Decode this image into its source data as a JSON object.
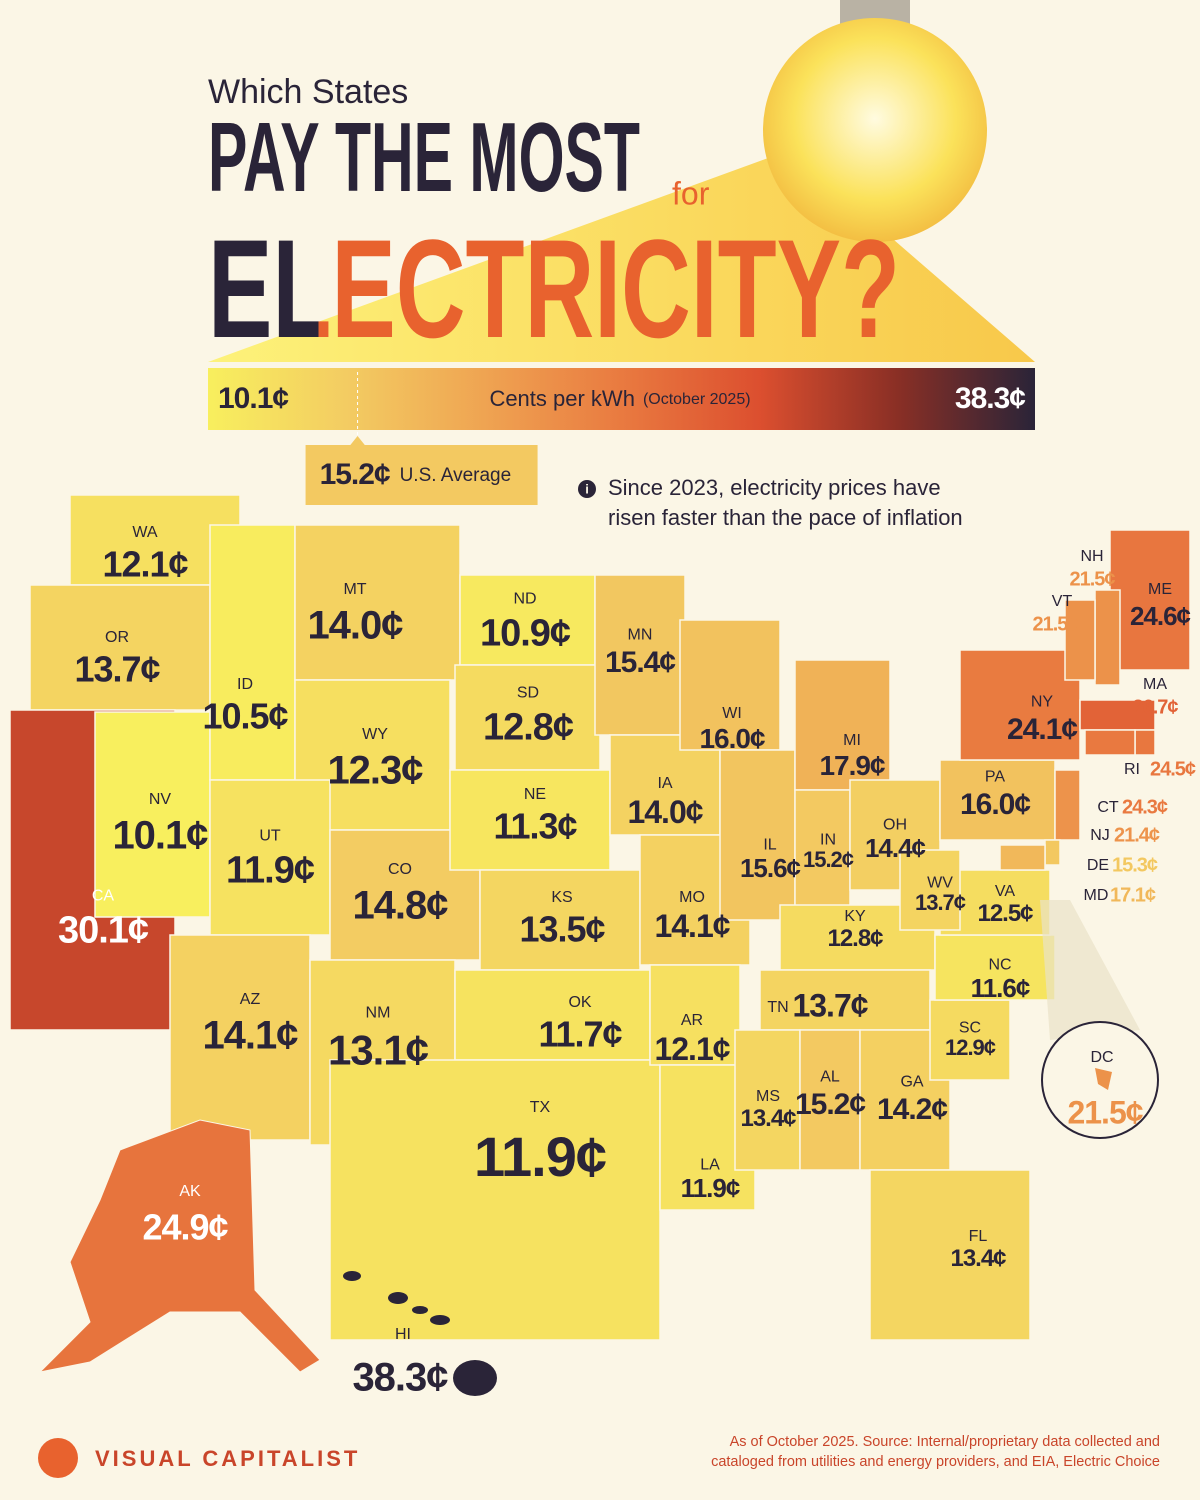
{
  "title": {
    "kicker": "Which States",
    "main": "PAY THE MOST",
    "connector": "for",
    "highlight": "ELECTRICITY?"
  },
  "legend": {
    "min": {
      "value": 10.1,
      "label": "10.1¢"
    },
    "max": {
      "value": 38.3,
      "label": "38.3¢"
    },
    "unit": "Cents per kWh",
    "period": "(October 2025)",
    "colors": [
      "#f8ef5e",
      "#f3cc62",
      "#efa452",
      "#e97a40",
      "#dc4f2f",
      "#8a2f25",
      "#2a2438"
    ]
  },
  "average": {
    "value": 15.2,
    "label": "15.2¢",
    "text": "U.S. Average"
  },
  "note": [
    "Since 2023, electricity prices have",
    "risen faster than the pace of inflation"
  ],
  "states": [
    {
      "abbr": "WA",
      "value": 12.1,
      "label": "12.1¢"
    },
    {
      "abbr": "OR",
      "value": 13.7,
      "label": "13.7¢"
    },
    {
      "abbr": "CA",
      "value": 30.1,
      "label": "30.1¢"
    },
    {
      "abbr": "NV",
      "value": 10.1,
      "label": "10.1¢"
    },
    {
      "abbr": "ID",
      "value": 10.5,
      "label": "10.5¢"
    },
    {
      "abbr": "MT",
      "value": 14.0,
      "label": "14.0¢"
    },
    {
      "abbr": "WY",
      "value": 12.3,
      "label": "12.3¢"
    },
    {
      "abbr": "UT",
      "value": 11.9,
      "label": "11.9¢"
    },
    {
      "abbr": "CO",
      "value": 14.8,
      "label": "14.8¢"
    },
    {
      "abbr": "AZ",
      "value": 14.1,
      "label": "14.1¢"
    },
    {
      "abbr": "NM",
      "value": 13.1,
      "label": "13.1¢"
    },
    {
      "abbr": "ND",
      "value": 10.9,
      "label": "10.9¢"
    },
    {
      "abbr": "SD",
      "value": 12.8,
      "label": "12.8¢"
    },
    {
      "abbr": "NE",
      "value": 11.3,
      "label": "11.3¢"
    },
    {
      "abbr": "KS",
      "value": 13.5,
      "label": "13.5¢"
    },
    {
      "abbr": "OK",
      "value": 11.7,
      "label": "11.7¢"
    },
    {
      "abbr": "TX",
      "value": 11.9,
      "label": "11.9¢"
    },
    {
      "abbr": "MN",
      "value": 15.4,
      "label": "15.4¢"
    },
    {
      "abbr": "IA",
      "value": 14.0,
      "label": "14.0¢"
    },
    {
      "abbr": "MO",
      "value": 14.1,
      "label": "14.1¢"
    },
    {
      "abbr": "AR",
      "value": 12.1,
      "label": "12.1¢"
    },
    {
      "abbr": "LA",
      "value": 11.9,
      "label": "11.9¢"
    },
    {
      "abbr": "WI",
      "value": 16.0,
      "label": "16.0¢"
    },
    {
      "abbr": "IL",
      "value": 15.6,
      "label": "15.6¢"
    },
    {
      "abbr": "MI",
      "value": 17.9,
      "label": "17.9¢"
    },
    {
      "abbr": "IN",
      "value": 15.2,
      "label": "15.2¢"
    },
    {
      "abbr": "OH",
      "value": 14.4,
      "label": "14.4¢"
    },
    {
      "abbr": "KY",
      "value": 12.8,
      "label": "12.8¢"
    },
    {
      "abbr": "TN",
      "value": 13.7,
      "label": "13.7¢"
    },
    {
      "abbr": "MS",
      "value": 13.4,
      "label": "13.4¢"
    },
    {
      "abbr": "AL",
      "value": 15.2,
      "label": "15.2¢"
    },
    {
      "abbr": "GA",
      "value": 14.2,
      "label": "14.2¢"
    },
    {
      "abbr": "FL",
      "value": 13.4,
      "label": "13.4¢"
    },
    {
      "abbr": "SC",
      "value": 12.9,
      "label": "12.9¢"
    },
    {
      "abbr": "NC",
      "value": 11.6,
      "label": "11.6¢"
    },
    {
      "abbr": "VA",
      "value": 12.5,
      "label": "12.5¢"
    },
    {
      "abbr": "WV",
      "value": 13.7,
      "label": "13.7¢"
    },
    {
      "abbr": "PA",
      "value": 16.0,
      "label": "16.0¢"
    },
    {
      "abbr": "NY",
      "value": 24.1,
      "label": "24.1¢"
    },
    {
      "abbr": "ME",
      "value": 24.6,
      "label": "24.6¢"
    },
    {
      "abbr": "NH",
      "value": 21.5,
      "label": "21.5¢"
    },
    {
      "abbr": "VT",
      "value": 21.5,
      "label": "21.5¢"
    },
    {
      "abbr": "MA",
      "value": 26.7,
      "label": "26.7¢"
    },
    {
      "abbr": "RI",
      "value": 24.5,
      "label": "24.5¢"
    },
    {
      "abbr": "CT",
      "value": 24.3,
      "label": "24.3¢"
    },
    {
      "abbr": "NJ",
      "value": 21.4,
      "label": "21.4¢"
    },
    {
      "abbr": "DE",
      "value": 15.3,
      "label": "15.3¢"
    },
    {
      "abbr": "MD",
      "value": 17.1,
      "label": "17.1¢"
    },
    {
      "abbr": "DC",
      "value": 21.5,
      "label": "21.5¢"
    },
    {
      "abbr": "AK",
      "value": 24.9,
      "label": "24.9¢"
    },
    {
      "abbr": "HI",
      "value": 38.3,
      "label": "38.3¢"
    }
  ],
  "footer": {
    "brand": "VISUAL CAPITALIST",
    "source": [
      "As of October 2025. Source: Internal/proprietary data collected and",
      "cataloged from utilities and energy providers, and EIA, Electric Choice"
    ]
  }
}
